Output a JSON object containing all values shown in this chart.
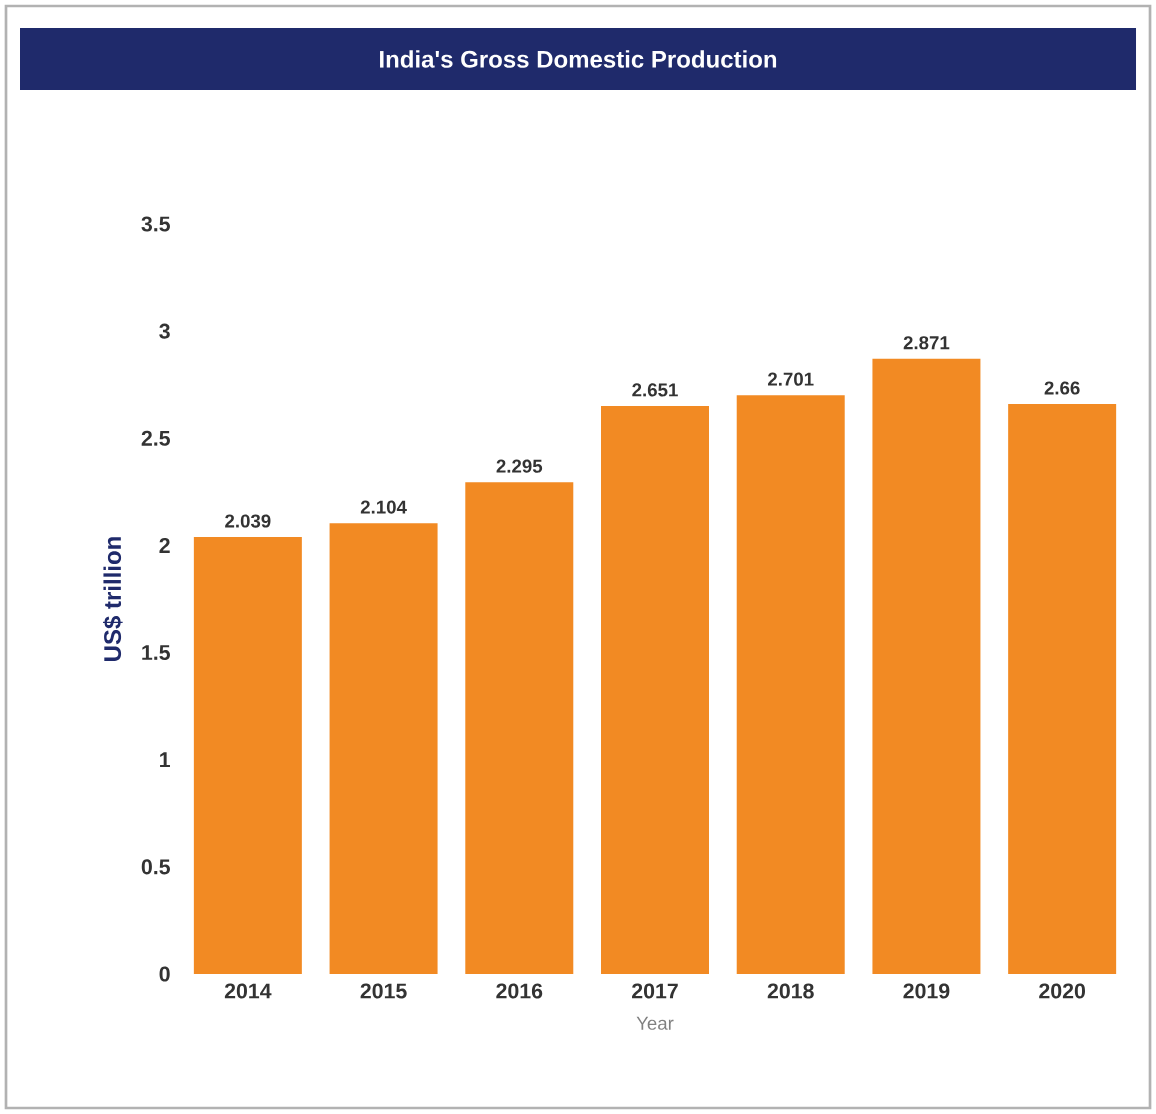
{
  "chart_data": {
    "type": "bar",
    "title": "India's Gross Domestic Production",
    "xlabel": "Year",
    "ylabel": "US$ trillion",
    "categories": [
      "2014",
      "2015",
      "2016",
      "2017",
      "2018",
      "2019",
      "2020"
    ],
    "values": [
      2.039,
      2.104,
      2.295,
      2.651,
      2.701,
      2.871,
      2.66
    ],
    "color": "#f28a23",
    "ylim": [
      0,
      3.5
    ],
    "yticks": [
      0,
      0.5,
      1,
      1.5,
      2,
      2.5,
      3,
      3.5
    ],
    "data_labels": true
  }
}
